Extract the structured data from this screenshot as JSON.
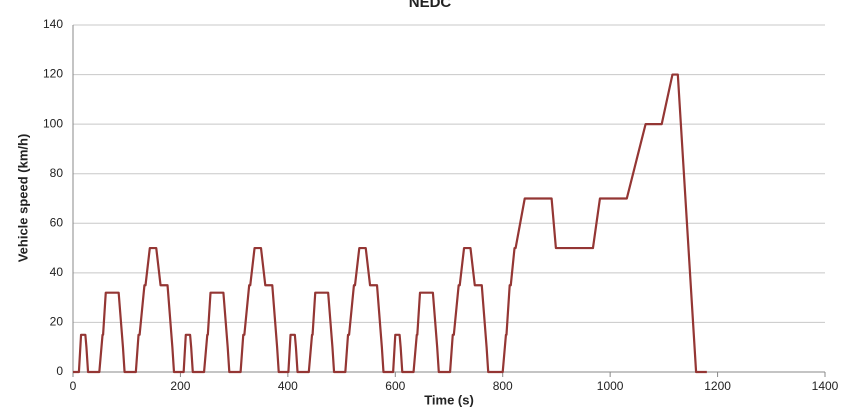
{
  "chart_data": {
    "type": "line",
    "title": "NEDC",
    "x_label": "Time (s)",
    "y_label": "Vehicle speed (km/h)",
    "x": [
      0,
      11,
      15,
      23,
      25,
      28,
      49,
      55,
      56,
      61,
      85,
      93,
      96,
      117,
      122,
      124,
      133,
      135,
      143,
      155,
      163,
      176,
      185,
      188,
      195,
      206,
      210,
      218,
      220,
      223,
      244,
      250,
      251,
      256,
      280,
      288,
      291,
      312,
      317,
      319,
      328,
      330,
      338,
      350,
      358,
      371,
      380,
      383,
      390,
      401,
      405,
      413,
      415,
      418,
      439,
      445,
      446,
      451,
      475,
      483,
      486,
      507,
      512,
      514,
      523,
      525,
      533,
      545,
      553,
      566,
      575,
      578,
      585,
      596,
      600,
      608,
      610,
      613,
      634,
      640,
      641,
      646,
      670,
      678,
      681,
      702,
      707,
      709,
      718,
      720,
      728,
      740,
      748,
      761,
      770,
      773,
      780,
      800,
      806,
      807,
      813,
      815,
      822,
      824,
      841,
      891,
      899,
      968,
      981,
      1031,
      1066,
      1096,
      1116,
      1126,
      1160,
      1180
    ],
    "series": [
      {
        "name": "NEDC",
        "color": "#943634",
        "values": [
          0,
          0,
          15,
          15,
          10,
          0,
          0,
          15,
          15,
          32,
          32,
          10,
          0,
          0,
          15,
          15,
          35,
          35,
          50,
          50,
          35,
          35,
          10,
          0,
          0,
          0,
          15,
          15,
          10,
          0,
          0,
          15,
          15,
          32,
          32,
          10,
          0,
          0,
          15,
          15,
          35,
          35,
          50,
          50,
          35,
          35,
          10,
          0,
          0,
          0,
          15,
          15,
          10,
          0,
          0,
          15,
          15,
          32,
          32,
          10,
          0,
          0,
          15,
          15,
          35,
          35,
          50,
          50,
          35,
          35,
          10,
          0,
          0,
          0,
          15,
          15,
          10,
          0,
          0,
          15,
          15,
          32,
          32,
          10,
          0,
          0,
          15,
          15,
          35,
          35,
          50,
          50,
          35,
          35,
          10,
          0,
          0,
          0,
          15,
          15,
          35,
          35,
          50,
          50,
          70,
          70,
          50,
          50,
          70,
          70,
          100,
          100,
          120,
          120,
          0,
          0
        ]
      }
    ],
    "xlim": [
      0,
      1400
    ],
    "xticks": [
      0,
      200,
      400,
      600,
      800,
      1000,
      1200,
      1400
    ],
    "ylim": [
      0,
      140
    ],
    "yticks": [
      0,
      20,
      40,
      60,
      80,
      100,
      120,
      140
    ],
    "grid": true
  }
}
